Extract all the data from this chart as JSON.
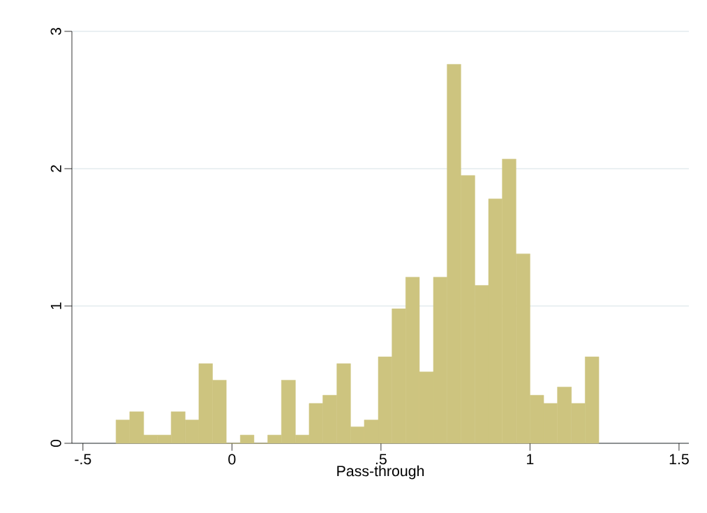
{
  "chart_data": {
    "type": "histogram",
    "xlabel": "Pass-through",
    "bins": [
      -0.389,
      -0.343,
      -0.296,
      -0.25,
      -0.204,
      -0.157,
      -0.111,
      -0.065,
      -0.019,
      0.028,
      0.074,
      0.12,
      0.166,
      0.213,
      0.259,
      0.305,
      0.352,
      0.398,
      0.444,
      0.491,
      0.537,
      0.583,
      0.629,
      0.676,
      0.722,
      0.768,
      0.815,
      0.861,
      0.907,
      0.953,
      1.0,
      1.046,
      1.092,
      1.139,
      1.185,
      1.231
    ],
    "values": [
      0.17,
      0.23,
      0.06,
      0.06,
      0.23,
      0.17,
      0.58,
      0.46,
      0,
      0.06,
      0,
      0.06,
      0.46,
      0.06,
      0.29,
      0.35,
      0.58,
      0.12,
      0.17,
      0.63,
      0.98,
      1.21,
      0.52,
      1.21,
      2.76,
      1.95,
      1.15,
      1.78,
      2.07,
      1.38,
      0.35,
      0.29,
      0.41,
      0.29,
      0.63
    ],
    "color": "#cdc47f",
    "xlim": [
      -0.537,
      1.533
    ],
    "ylim": [
      0,
      3
    ],
    "xticks": [
      {
        "value": -0.5,
        "label": "-.5"
      },
      0,
      {
        "value": 0.5,
        "label": ".5"
      },
      1,
      1.5
    ],
    "yticks": [
      0,
      1,
      2,
      3
    ],
    "grid": "y"
  }
}
